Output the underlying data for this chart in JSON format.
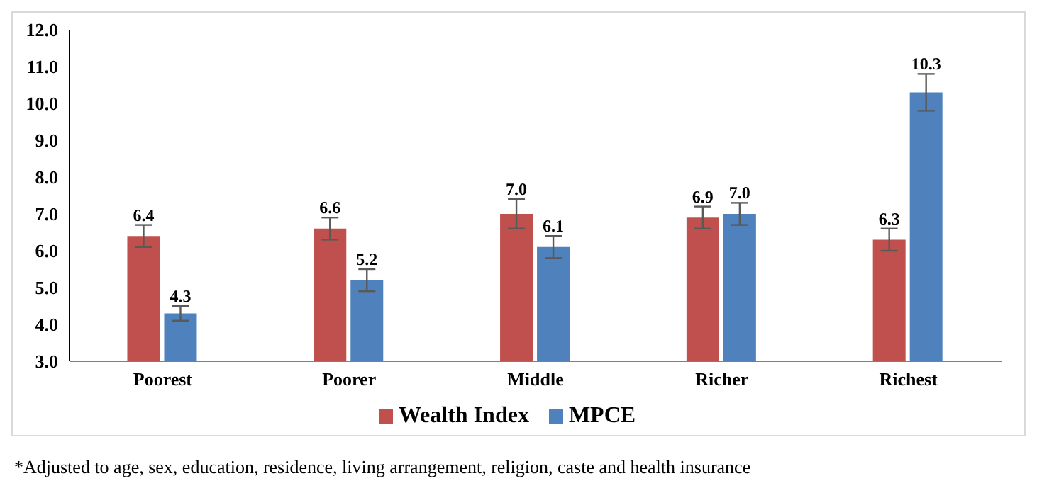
{
  "chart_data": {
    "type": "bar",
    "categories": [
      "Poorest",
      "Poorer",
      "Middle",
      "Richer",
      "Richest"
    ],
    "series": [
      {
        "name": "Wealth Index",
        "color": "#c0504d",
        "values": [
          6.4,
          6.6,
          7.0,
          6.9,
          6.3
        ],
        "errors": [
          0.3,
          0.3,
          0.4,
          0.3,
          0.3
        ]
      },
      {
        "name": "MPCE",
        "color": "#4f81bd",
        "values": [
          4.3,
          5.2,
          6.1,
          7.0,
          10.3
        ],
        "errors": [
          0.2,
          0.3,
          0.3,
          0.3,
          0.5
        ]
      }
    ],
    "ylim": [
      3,
      12
    ],
    "yticks": [
      {
        "value": 3,
        "label": "3.0"
      },
      {
        "value": 4,
        "label": "4.0"
      },
      {
        "value": 5,
        "label": "5.0"
      },
      {
        "value": 6,
        "label": "6.0"
      },
      {
        "value": 7,
        "label": "7.0"
      },
      {
        "value": 8,
        "label": "8.0"
      },
      {
        "value": 9,
        "label": "9.0"
      },
      {
        "value": 10,
        "label": "10.0"
      },
      {
        "value": 11,
        "label": "11.0"
      },
      {
        "value": 12,
        "label": "12.0"
      }
    ],
    "value_labels": [
      [
        "6.4",
        "6.6",
        "7.0",
        "6.9",
        "6.3"
      ],
      [
        "4.3",
        "5.2",
        "6.1",
        "7.0",
        "10.3"
      ]
    ],
    "grid": false,
    "legend": "bottom",
    "annotations": [
      "*Adjusted to age, sex, education, residence, living arrangement, religion, caste and health insurance"
    ]
  }
}
